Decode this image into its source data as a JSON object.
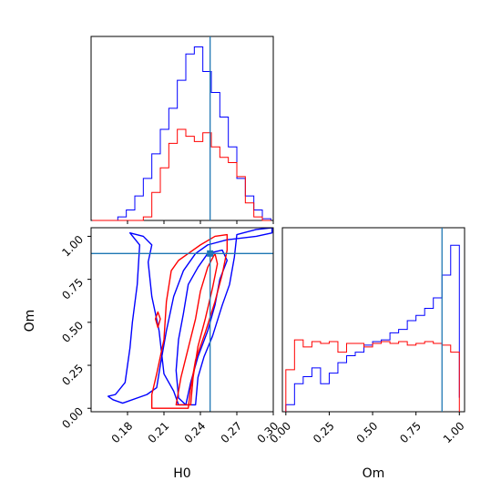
{
  "chart_data": {
    "type": "corner",
    "parameters": [
      "H0",
      "Om"
    ],
    "truth": {
      "H0": 0.248,
      "Om": 0.9
    },
    "colors": {
      "blue": "#0000ff",
      "red": "#ff0000",
      "truth": "#1f77b4"
    },
    "panels": [
      {
        "id": "hist-H0",
        "type": "histogram",
        "xlim": [
          0.15,
          0.3
        ],
        "bin_edges": [
          0.151,
          0.158,
          0.165,
          0.172,
          0.179,
          0.186,
          0.193,
          0.2,
          0.207,
          0.214,
          0.221,
          0.228,
          0.235,
          0.242,
          0.249,
          0.256,
          0.263,
          0.27,
          0.277,
          0.284,
          0.291,
          0.298
        ],
        "series": [
          {
            "name": "",
            "color": "blue",
            "counts": [
              0,
              0,
              0,
              0.02,
              0.06,
              0.14,
              0.24,
              0.38,
              0.52,
              0.64,
              0.8,
              0.95,
              0.99,
              0.85,
              0.73,
              0.59,
              0.42,
              0.24,
              0.14,
              0.06,
              0.01
            ]
          },
          {
            "name": "",
            "color": "red",
            "counts": [
              0,
              0,
              0,
              0,
              0,
              0,
              0.02,
              0.16,
              0.3,
              0.44,
              0.52,
              0.48,
              0.45,
              0.5,
              0.42,
              0.36,
              0.33,
              0.25,
              0.1,
              0.02,
              0
            ]
          }
        ]
      },
      {
        "id": "hist-Om",
        "type": "histogram",
        "xlim": [
          -0.02,
          1.03
        ],
        "xlabel": "Om",
        "xticks": [
          "0.00",
          "0.25",
          "0.50",
          "0.75",
          "1.00"
        ],
        "bin_edges": [
          0.0,
          0.05,
          0.1,
          0.15,
          0.2,
          0.25,
          0.3,
          0.35,
          0.4,
          0.45,
          0.5,
          0.55,
          0.6,
          0.65,
          0.7,
          0.75,
          0.8,
          0.85,
          0.9,
          0.95,
          1.0
        ],
        "series": [
          {
            "name": "",
            "color": "blue",
            "counts": [
              0.04,
              0.16,
              0.2,
              0.25,
              0.16,
              0.22,
              0.28,
              0.32,
              0.34,
              0.38,
              0.4,
              0.41,
              0.45,
              0.47,
              0.52,
              0.55,
              0.59,
              0.65,
              0.78,
              0.95,
              0.08
            ]
          },
          {
            "name": "",
            "color": "red",
            "counts": [
              0.24,
              0.41,
              0.37,
              0.4,
              0.39,
              0.4,
              0.34,
              0.39,
              0.39,
              0.37,
              0.39,
              0.4,
              0.39,
              0.4,
              0.38,
              0.39,
              0.4,
              0.39,
              0.38,
              0.34,
              0
            ]
          }
        ]
      },
      {
        "id": "contour-H0-Om",
        "type": "contour",
        "xlim": [
          0.15,
          0.3
        ],
        "ylim": [
          -0.02,
          1.05
        ],
        "xlabel": "H0",
        "ylabel": "Om",
        "xticks": [
          "0.18",
          "0.21",
          "0.24",
          "0.27",
          "0.30"
        ],
        "yticks": [
          "0.00",
          "0.25",
          "0.50",
          "0.75",
          "1.00"
        ],
        "contours": [
          {
            "color": "blue",
            "points": [
              [
                0.168,
                0.05
              ],
              [
                0.176,
                0.03
              ],
              [
                0.196,
                0.08
              ],
              [
                0.204,
                0.12
              ],
              [
                0.207,
                0.25
              ],
              [
                0.212,
                0.45
              ],
              [
                0.218,
                0.65
              ],
              [
                0.226,
                0.8
              ],
              [
                0.236,
                0.9
              ],
              [
                0.246,
                0.95
              ],
              [
                0.262,
                0.98
              ],
              [
                0.286,
                1.0
              ],
              [
                0.299,
                1.02
              ],
              [
                0.299,
                1.05
              ],
              [
                0.286,
                1.04
              ],
              [
                0.27,
                1.01
              ],
              [
                0.268,
                0.88
              ],
              [
                0.264,
                0.72
              ],
              [
                0.258,
                0.6
              ],
              [
                0.25,
                0.42
              ],
              [
                0.243,
                0.3
              ],
              [
                0.238,
                0.18
              ],
              [
                0.236,
                0.02
              ],
              [
                0.222,
                0.02
              ],
              [
                0.218,
                0.1
              ],
              [
                0.21,
                0.2
              ],
              [
                0.206,
                0.45
              ],
              [
                0.2,
                0.65
              ],
              [
                0.197,
                0.85
              ],
              [
                0.2,
                0.95
              ],
              [
                0.193,
                1.0
              ],
              [
                0.182,
                1.02
              ],
              [
                0.19,
                0.95
              ],
              [
                0.188,
                0.72
              ],
              [
                0.184,
                0.5
              ],
              [
                0.182,
                0.35
              ],
              [
                0.178,
                0.15
              ],
              [
                0.17,
                0.08
              ],
              [
                0.164,
                0.07
              ]
            ]
          },
          {
            "color": "blue",
            "points": [
              [
                0.228,
                0.02
              ],
              [
                0.232,
                0.15
              ],
              [
                0.238,
                0.3
              ],
              [
                0.246,
                0.45
              ],
              [
                0.252,
                0.6
              ],
              [
                0.256,
                0.75
              ],
              [
                0.262,
                0.86
              ],
              [
                0.258,
                0.92
              ],
              [
                0.246,
                0.9
              ],
              [
                0.238,
                0.82
              ],
              [
                0.23,
                0.72
              ],
              [
                0.226,
                0.55
              ],
              [
                0.222,
                0.4
              ],
              [
                0.22,
                0.22
              ],
              [
                0.222,
                0.06
              ]
            ]
          },
          {
            "color": "red",
            "points": [
              [
                0.2,
                0.0
              ],
              [
                0.2,
                0.08
              ],
              [
                0.204,
                0.2
              ],
              [
                0.21,
                0.4
              ],
              [
                0.212,
                0.62
              ],
              [
                0.216,
                0.8
              ],
              [
                0.222,
                0.86
              ],
              [
                0.23,
                0.9
              ],
              [
                0.24,
                0.95
              ],
              [
                0.252,
                1.0
              ],
              [
                0.262,
                1.01
              ],
              [
                0.262,
                0.92
              ],
              [
                0.258,
                0.78
              ],
              [
                0.252,
                0.62
              ],
              [
                0.244,
                0.44
              ],
              [
                0.236,
                0.28
              ],
              [
                0.232,
                0.12
              ],
              [
                0.23,
                0.0
              ]
            ]
          },
          {
            "color": "red",
            "points": [
              [
                0.22,
                0.02
              ],
              [
                0.224,
                0.18
              ],
              [
                0.23,
                0.35
              ],
              [
                0.236,
                0.52
              ],
              [
                0.24,
                0.68
              ],
              [
                0.246,
                0.82
              ],
              [
                0.252,
                0.9
              ],
              [
                0.254,
                0.84
              ],
              [
                0.25,
                0.7
              ],
              [
                0.244,
                0.52
              ],
              [
                0.238,
                0.36
              ],
              [
                0.234,
                0.18
              ],
              [
                0.232,
                0.02
              ]
            ]
          },
          {
            "color": "red",
            "points": [
              [
                0.205,
                0.47
              ],
              [
                0.207,
                0.52
              ],
              [
                0.205,
                0.56
              ],
              [
                0.203,
                0.52
              ]
            ]
          }
        ]
      }
    ]
  }
}
